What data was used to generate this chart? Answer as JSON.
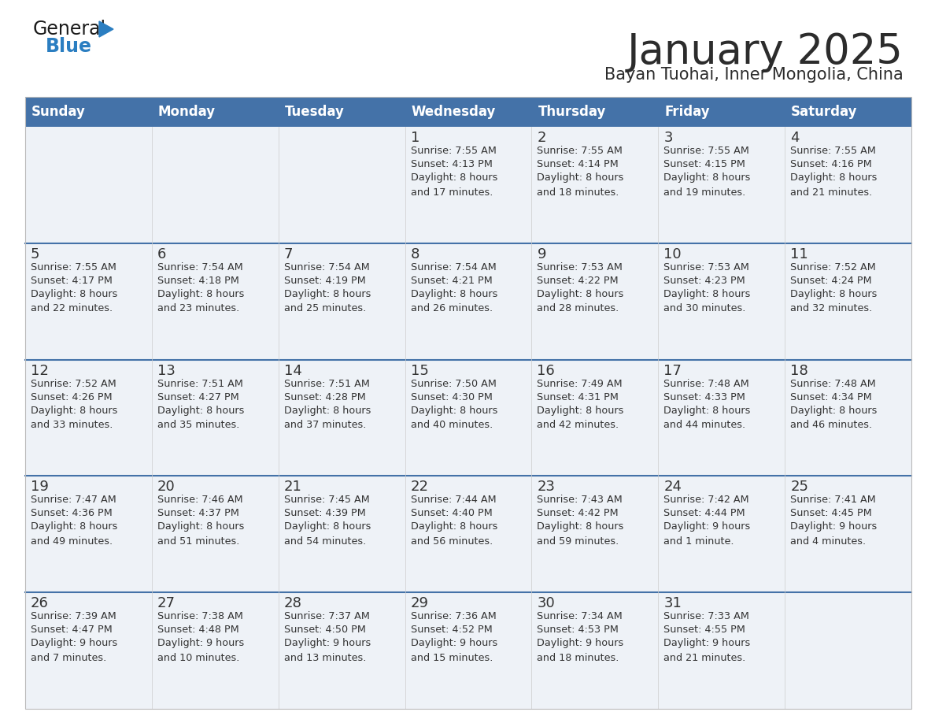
{
  "title": "January 2025",
  "subtitle": "Bayan Tuohai, Inner Mongolia, China",
  "days_of_week": [
    "Sunday",
    "Monday",
    "Tuesday",
    "Wednesday",
    "Thursday",
    "Friday",
    "Saturday"
  ],
  "header_bg": "#4472a8",
  "header_text": "#ffffff",
  "row_bg_light": "#eef2f7",
  "separator_color": "#4472a8",
  "text_color": "#333333",
  "title_color": "#2c2c2c",
  "subtitle_color": "#2c2c2c",
  "border_color": "#aaaaaa",
  "col_line_color": "#cccccc",
  "calendar_data": [
    [
      {
        "day": "",
        "sunrise": "",
        "sunset": "",
        "daylight": ""
      },
      {
        "day": "",
        "sunrise": "",
        "sunset": "",
        "daylight": ""
      },
      {
        "day": "",
        "sunrise": "",
        "sunset": "",
        "daylight": ""
      },
      {
        "day": "1",
        "sunrise": "7:55 AM",
        "sunset": "4:13 PM",
        "daylight": "8 hours\nand 17 minutes."
      },
      {
        "day": "2",
        "sunrise": "7:55 AM",
        "sunset": "4:14 PM",
        "daylight": "8 hours\nand 18 minutes."
      },
      {
        "day": "3",
        "sunrise": "7:55 AM",
        "sunset": "4:15 PM",
        "daylight": "8 hours\nand 19 minutes."
      },
      {
        "day": "4",
        "sunrise": "7:55 AM",
        "sunset": "4:16 PM",
        "daylight": "8 hours\nand 21 minutes."
      }
    ],
    [
      {
        "day": "5",
        "sunrise": "7:55 AM",
        "sunset": "4:17 PM",
        "daylight": "8 hours\nand 22 minutes."
      },
      {
        "day": "6",
        "sunrise": "7:54 AM",
        "sunset": "4:18 PM",
        "daylight": "8 hours\nand 23 minutes."
      },
      {
        "day": "7",
        "sunrise": "7:54 AM",
        "sunset": "4:19 PM",
        "daylight": "8 hours\nand 25 minutes."
      },
      {
        "day": "8",
        "sunrise": "7:54 AM",
        "sunset": "4:21 PM",
        "daylight": "8 hours\nand 26 minutes."
      },
      {
        "day": "9",
        "sunrise": "7:53 AM",
        "sunset": "4:22 PM",
        "daylight": "8 hours\nand 28 minutes."
      },
      {
        "day": "10",
        "sunrise": "7:53 AM",
        "sunset": "4:23 PM",
        "daylight": "8 hours\nand 30 minutes."
      },
      {
        "day": "11",
        "sunrise": "7:52 AM",
        "sunset": "4:24 PM",
        "daylight": "8 hours\nand 32 minutes."
      }
    ],
    [
      {
        "day": "12",
        "sunrise": "7:52 AM",
        "sunset": "4:26 PM",
        "daylight": "8 hours\nand 33 minutes."
      },
      {
        "day": "13",
        "sunrise": "7:51 AM",
        "sunset": "4:27 PM",
        "daylight": "8 hours\nand 35 minutes."
      },
      {
        "day": "14",
        "sunrise": "7:51 AM",
        "sunset": "4:28 PM",
        "daylight": "8 hours\nand 37 minutes."
      },
      {
        "day": "15",
        "sunrise": "7:50 AM",
        "sunset": "4:30 PM",
        "daylight": "8 hours\nand 40 minutes."
      },
      {
        "day": "16",
        "sunrise": "7:49 AM",
        "sunset": "4:31 PM",
        "daylight": "8 hours\nand 42 minutes."
      },
      {
        "day": "17",
        "sunrise": "7:48 AM",
        "sunset": "4:33 PM",
        "daylight": "8 hours\nand 44 minutes."
      },
      {
        "day": "18",
        "sunrise": "7:48 AM",
        "sunset": "4:34 PM",
        "daylight": "8 hours\nand 46 minutes."
      }
    ],
    [
      {
        "day": "19",
        "sunrise": "7:47 AM",
        "sunset": "4:36 PM",
        "daylight": "8 hours\nand 49 minutes."
      },
      {
        "day": "20",
        "sunrise": "7:46 AM",
        "sunset": "4:37 PM",
        "daylight": "8 hours\nand 51 minutes."
      },
      {
        "day": "21",
        "sunrise": "7:45 AM",
        "sunset": "4:39 PM",
        "daylight": "8 hours\nand 54 minutes."
      },
      {
        "day": "22",
        "sunrise": "7:44 AM",
        "sunset": "4:40 PM",
        "daylight": "8 hours\nand 56 minutes."
      },
      {
        "day": "23",
        "sunrise": "7:43 AM",
        "sunset": "4:42 PM",
        "daylight": "8 hours\nand 59 minutes."
      },
      {
        "day": "24",
        "sunrise": "7:42 AM",
        "sunset": "4:44 PM",
        "daylight": "9 hours\nand 1 minute."
      },
      {
        "day": "25",
        "sunrise": "7:41 AM",
        "sunset": "4:45 PM",
        "daylight": "9 hours\nand 4 minutes."
      }
    ],
    [
      {
        "day": "26",
        "sunrise": "7:39 AM",
        "sunset": "4:47 PM",
        "daylight": "9 hours\nand 7 minutes."
      },
      {
        "day": "27",
        "sunrise": "7:38 AM",
        "sunset": "4:48 PM",
        "daylight": "9 hours\nand 10 minutes."
      },
      {
        "day": "28",
        "sunrise": "7:37 AM",
        "sunset": "4:50 PM",
        "daylight": "9 hours\nand 13 minutes."
      },
      {
        "day": "29",
        "sunrise": "7:36 AM",
        "sunset": "4:52 PM",
        "daylight": "9 hours\nand 15 minutes."
      },
      {
        "day": "30",
        "sunrise": "7:34 AM",
        "sunset": "4:53 PM",
        "daylight": "9 hours\nand 18 minutes."
      },
      {
        "day": "31",
        "sunrise": "7:33 AM",
        "sunset": "4:55 PM",
        "daylight": "9 hours\nand 21 minutes."
      },
      {
        "day": "",
        "sunrise": "",
        "sunset": "",
        "daylight": ""
      }
    ]
  ]
}
